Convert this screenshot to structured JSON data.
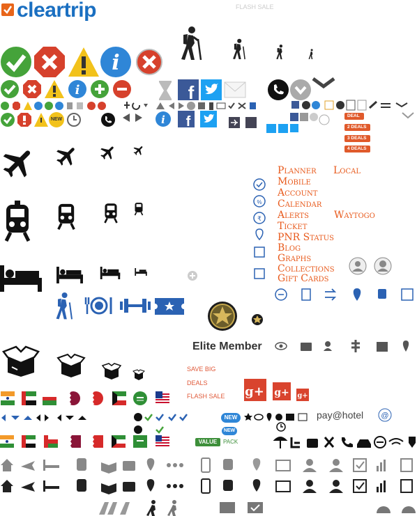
{
  "brand": {
    "name": "cleartrip"
  },
  "labels": {
    "flash_sale_top": "FLASH SALE",
    "menu_left": [
      "Planner",
      "Mobile",
      "Account",
      "Calendar",
      "Alerts",
      "Ticket",
      "PNR Status",
      "Blog",
      "Graphs",
      "Collections",
      "Gift Cards"
    ],
    "menu_right": [
      "Local",
      "Waytogo"
    ],
    "elite_member": "Elite Member",
    "save_big": "SAVE BIG",
    "deals": "DEALS",
    "flash_sale": "FLASH SALE",
    "new_badge": "NEW",
    "new_pill": "NEW",
    "value_pack": [
      "VALUE",
      "PACK"
    ],
    "pay_at_hotel": "pay@hotel",
    "deal_tags": [
      "DEAL",
      "2 DEALS",
      "3 DEALS",
      "4 DEALS"
    ]
  },
  "icons": {
    "status": [
      "check-icon",
      "close-icon",
      "warning-icon",
      "info-icon",
      "error-icon"
    ],
    "hiker": "hiker-icon",
    "plane": "plane-icon",
    "train": "train-icon",
    "bed": "bed-icon",
    "dining": "dining-icon",
    "fitness": "dumbbell-icon",
    "ticket": "ticket-icon",
    "star_badge": "star-badge-icon",
    "dealbox": "gift-box-icon",
    "flags": [
      "india-flag",
      "uae-flag",
      "oman-flag",
      "qatar-flag",
      "bahrain-flag",
      "kuwait-flag",
      "saudi-flag",
      "usa-flag"
    ]
  },
  "colors": {
    "brand_blue": "#1a6fc1",
    "check_green": "#45a33a",
    "close_red": "#d6412c",
    "warning_yellow": "#f2c21b",
    "info_blue": "#2f86d7",
    "orange_text": "#e85a1c",
    "icon_dark": "#222222",
    "icon_blue": "#2b62b3",
    "google_red": "#d9442e",
    "facebook_blue": "#3b5998",
    "twitter_blue": "#1da1f2"
  }
}
